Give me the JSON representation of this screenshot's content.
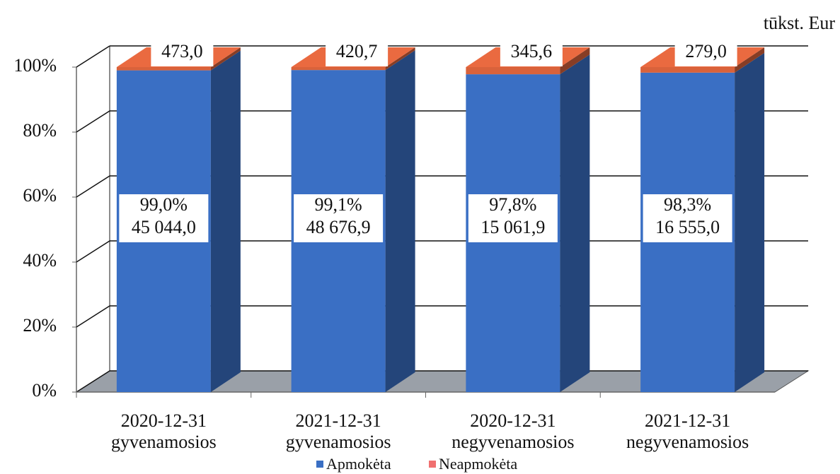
{
  "chart_data": {
    "type": "bar3d_stacked100",
    "unit_label": "tūkst. Eur",
    "categories": [
      [
        "2020-12-31",
        "gyvenamosios"
      ],
      [
        "2021-12-31",
        "gyvenamosios"
      ],
      [
        "2020-12-31",
        "negyvenamosios"
      ],
      [
        "2021-12-31",
        "negyvenamosios"
      ]
    ],
    "series": [
      {
        "name": "Apmokėta",
        "color": "#3a6fc4",
        "values": [
          99.0,
          99.1,
          97.8,
          98.3
        ],
        "value_labels": [
          "99,0%",
          "99,1%",
          "97,8%",
          "98,3%"
        ],
        "amounts": [
          45044.0,
          48676.9,
          15061.9,
          16555.0
        ],
        "amount_labels": [
          "45 044,0",
          "48 676,9",
          "15 061,9",
          "16 555,0"
        ]
      },
      {
        "name": "Neapmokėta",
        "color": "#d9623b",
        "values": [
          1.0,
          0.9,
          2.2,
          1.7
        ],
        "amounts": [
          473.0,
          420.7,
          345.6,
          279.0
        ],
        "amount_labels": [
          "473,0",
          "420,7",
          "345,6",
          "279,0"
        ]
      }
    ],
    "ylim": [
      0,
      100
    ],
    "yticks": [
      {
        "value": 0,
        "label": "0%"
      },
      {
        "value": 20,
        "label": "20%"
      },
      {
        "value": 40,
        "label": "40%"
      },
      {
        "value": 60,
        "label": "60%"
      },
      {
        "value": 80,
        "label": "80%"
      },
      {
        "value": 100,
        "label": "100%"
      }
    ],
    "grid": true,
    "legend": "bottom"
  }
}
